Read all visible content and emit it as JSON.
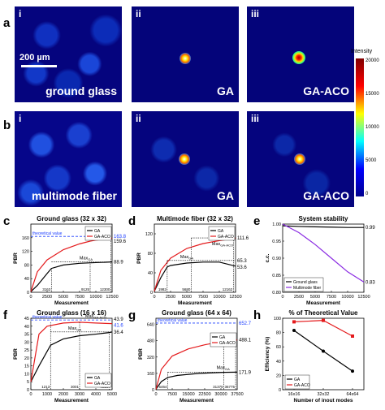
{
  "labels": {
    "a": "a",
    "b": "b",
    "c": "c",
    "d": "d",
    "e": "e",
    "f": "f",
    "g": "g",
    "h": "h"
  },
  "images": {
    "roman": [
      "i",
      "ii",
      "iii"
    ],
    "row_a": {
      "captions": [
        "ground glass",
        "GA",
        "GA-ACO"
      ],
      "scale_bar": "200 µm"
    },
    "row_b": {
      "captions": [
        "multimode fiber",
        "GA",
        "GA-ACO"
      ]
    }
  },
  "colorbar": {
    "title": "Intensity",
    "ticks": [
      "20000",
      "15000",
      "10000",
      "5000",
      "0"
    ]
  },
  "chart_data": [
    {
      "id": "c",
      "type": "line",
      "title": "Ground glass (32 x 32)",
      "xlabel": "Measurement",
      "ylabel": "PBR",
      "xlim": [
        0,
        12500
      ],
      "ylim": [
        0,
        200
      ],
      "x_ticks": [
        "0",
        "2500",
        "5000",
        "7500",
        "10000",
        "12500"
      ],
      "y_ticks": [
        "0",
        "40",
        "80",
        "120",
        "160"
      ],
      "legend": [
        "GA",
        "GA-ACO"
      ],
      "series": [
        {
          "name": "GA",
          "x": [
            0,
            1000,
            2500,
            3163,
            5000,
            7500,
            10000,
            12500
          ],
          "y": [
            2,
            20,
            55,
            70,
            80,
            85,
            87,
            88.9
          ]
        },
        {
          "name": "GA-ACO",
          "x": [
            0,
            1000,
            2500,
            5000,
            7500,
            9125,
            10000,
            12300,
            12500
          ],
          "y": [
            2,
            60,
            95,
            125,
            142,
            150,
            153,
            157,
            159.6
          ]
        }
      ],
      "annotations": {
        "theoretical": "theoretical value",
        "theoretical_value": "163.8",
        "ga_end": "88.9",
        "aco_end": "159.6",
        "max_ga": "Max",
        "max_ga_sub": "GA",
        "max_aco": "Max",
        "max_aco_sub": "GA-ACO",
        "vlines": [
          "3163",
          "9125",
          "12300"
        ]
      }
    },
    {
      "id": "d",
      "type": "line",
      "title": "Multimode fiber (32 x 32)",
      "xlabel": "Measurement",
      "ylabel": "PBR",
      "xlim": [
        0,
        12500
      ],
      "ylim": [
        0,
        140
      ],
      "x_ticks": [
        "0",
        "2500",
        "5000",
        "7500",
        "10000",
        "12500"
      ],
      "y_ticks": [
        "0",
        "40",
        "80",
        "120"
      ],
      "legend": [
        "GA",
        "GA-ACO"
      ],
      "series": [
        {
          "name": "GA",
          "x": [
            0,
            1000,
            1982,
            2500,
            5000,
            7500,
            10000,
            12500
          ],
          "y": [
            2,
            30,
            52,
            55,
            60,
            62,
            62,
            53.6
          ]
        },
        {
          "name": "GA-ACO",
          "x": [
            0,
            1000,
            2500,
            5000,
            7500,
            10000,
            12162,
            12500
          ],
          "y": [
            2,
            45,
            70,
            90,
            100,
            106,
            110,
            111.6
          ]
        }
      ],
      "annotations": {
        "aco_end": "111.6",
        "ga_mid": "65.3",
        "ga_end": "53.6",
        "max_ga": "Max",
        "max_ga_sub": "GA",
        "max_aco": "Max",
        "max_aco_sub": "GA-ACO",
        "vlines": [
          "1982",
          "5680",
          "12162"
        ]
      }
    },
    {
      "id": "e",
      "type": "line",
      "title": "System stability",
      "xlabel": "Measurement",
      "ylabel": "c.c.",
      "xlim": [
        0,
        12500
      ],
      "ylim": [
        0.8,
        1.0
      ],
      "x_ticks": [
        "0",
        "2500",
        "5000",
        "7500",
        "10000",
        "12500"
      ],
      "y_ticks": [
        "0.80",
        "0.85",
        "0.90",
        "0.95",
        "1.00"
      ],
      "legend": [
        "Ground glass",
        "Multimode fiber"
      ],
      "series": [
        {
          "name": "Ground glass",
          "x": [
            0,
            2500,
            5000,
            7500,
            10000,
            12500
          ],
          "y": [
            0.995,
            0.993,
            0.992,
            0.991,
            0.99,
            0.99
          ]
        },
        {
          "name": "Multimode fiber",
          "x": [
            0,
            2500,
            5000,
            7500,
            10000,
            12500
          ],
          "y": [
            1.0,
            0.975,
            0.94,
            0.9,
            0.86,
            0.83
          ]
        }
      ],
      "annotations": {
        "gg_end": "0.99",
        "mmf_end": "0.83"
      }
    },
    {
      "id": "f",
      "type": "line",
      "title": "Ground glass (16 x 16)",
      "xlabel": "Measurement",
      "ylabel": "PBR",
      "xlim": [
        0,
        5000
      ],
      "ylim": [
        0,
        45
      ],
      "x_ticks": [
        "0",
        "1000",
        "2000",
        "3000",
        "4000",
        "5000"
      ],
      "y_ticks": [
        "0",
        "5",
        "10",
        "15",
        "20",
        "25",
        "30",
        "35",
        "40",
        "45"
      ],
      "legend": [
        "GA",
        "GA-ACO"
      ],
      "series": [
        {
          "name": "GA",
          "x": [
            0,
            500,
            1213,
            2000,
            3000,
            4000,
            4823,
            5000
          ],
          "y": [
            5,
            15,
            28,
            32,
            34,
            35,
            36,
            36.4
          ]
        },
        {
          "name": "GA-ACO",
          "x": [
            0,
            500,
            1000,
            2000,
            3001,
            4000,
            5000
          ],
          "y": [
            5,
            35,
            40,
            42,
            42.5,
            42,
            41.6
          ]
        }
      ],
      "annotations": {
        "theoretical": "theoretical value",
        "theoretical_value": "43.9",
        "aco_end": "41.6",
        "ga_end": "36.4",
        "max_ga": "Max",
        "max_ga_sub": "GA",
        "max_aco": "Max",
        "max_aco_sub": "GA-ACO",
        "vlines": [
          "1213",
          "3001",
          "4823"
        ]
      }
    },
    {
      "id": "g",
      "type": "line",
      "title": "Ground glass (64 x 64)",
      "xlabel": "Measurement",
      "ylabel": "PBR",
      "xlim": [
        0,
        37500
      ],
      "ylim": [
        0,
        700
      ],
      "x_ticks": [
        "0",
        "7500",
        "15000",
        "22500",
        "30000",
        "37500"
      ],
      "y_ticks": [
        "0",
        "160",
        "320",
        "480",
        "640"
      ],
      "legend": [
        "GA",
        "GA-ACO"
      ],
      "series": [
        {
          "name": "GA",
          "x": [
            0,
            2500,
            5464,
            10000,
            20000,
            31375,
            37500
          ],
          "y": [
            5,
            80,
            120,
            140,
            160,
            170,
            171.9
          ]
        },
        {
          "name": "GA-ACO",
          "x": [
            0,
            2500,
            7500,
            15000,
            22500,
            30000,
            36775,
            37500
          ],
          "y": [
            5,
            200,
            330,
            400,
            440,
            470,
            485,
            488.1
          ]
        }
      ],
      "annotations": {
        "theoretical": "theoretical value",
        "theoretical_value": "652.7",
        "aco_end": "488.1",
        "ga_end": "171.9",
        "max_ga": "Max",
        "max_ga_sub": "GA",
        "max_aco": "Max",
        "max_aco_sub": "GA-ACO",
        "vlines": [
          "5464",
          "31375",
          "36775"
        ]
      }
    },
    {
      "id": "h",
      "type": "line",
      "title": "% of Theoretical Value",
      "xlabel": "Number of inout modes",
      "ylabel": "Efficiency (%)",
      "categories": [
        "16x16",
        "32x32",
        "64x64"
      ],
      "ylim": [
        0,
        100
      ],
      "y_ticks": [
        "0",
        "20",
        "40",
        "60",
        "80",
        "100"
      ],
      "legend": [
        "GA",
        "GA-ACO"
      ],
      "series": [
        {
          "name": "GA",
          "values": [
            83,
            54,
            26
          ]
        },
        {
          "name": "GA-ACO",
          "values": [
            95,
            97,
            75
          ]
        }
      ]
    }
  ]
}
